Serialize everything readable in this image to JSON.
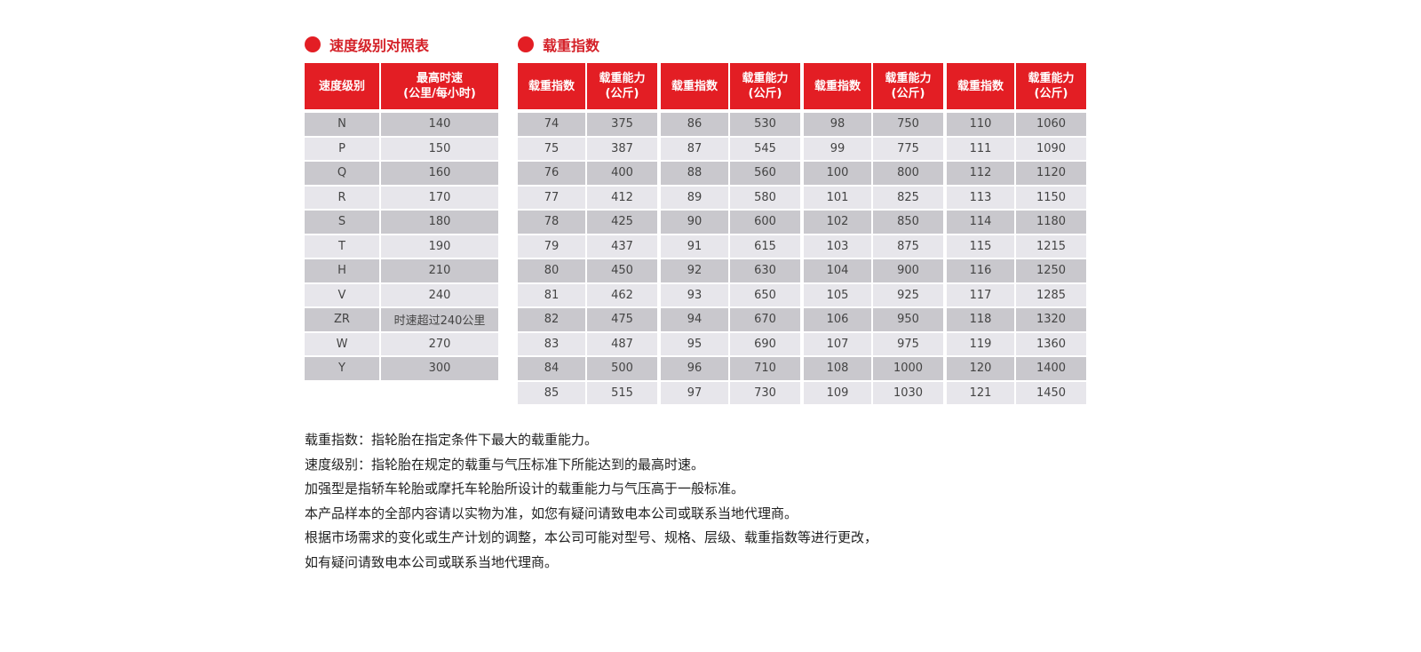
{
  "speed": {
    "title": "速度级别对照表",
    "headers": [
      "速度级别",
      "最高时速",
      "(公里/每小时)"
    ],
    "rows": [
      [
        "N",
        "140"
      ],
      [
        "P",
        "150"
      ],
      [
        "Q",
        "160"
      ],
      [
        "R",
        "170"
      ],
      [
        "S",
        "180"
      ],
      [
        "T",
        "190"
      ],
      [
        "H",
        "210"
      ],
      [
        "V",
        "240"
      ],
      [
        "ZR",
        "时速超过240公里"
      ],
      [
        "W",
        "270"
      ],
      [
        "Y",
        "300"
      ]
    ]
  },
  "load": {
    "title": "载重指数",
    "header_index": "载重指数",
    "header_cap": "载重能力",
    "header_unit": "(公斤)",
    "groups": [
      [
        [
          "74",
          "375"
        ],
        [
          "75",
          "387"
        ],
        [
          "76",
          "400"
        ],
        [
          "77",
          "412"
        ],
        [
          "78",
          "425"
        ],
        [
          "79",
          "437"
        ],
        [
          "80",
          "450"
        ],
        [
          "81",
          "462"
        ],
        [
          "82",
          "475"
        ],
        [
          "83",
          "487"
        ],
        [
          "84",
          "500"
        ],
        [
          "85",
          "515"
        ]
      ],
      [
        [
          "86",
          "530"
        ],
        [
          "87",
          "545"
        ],
        [
          "88",
          "560"
        ],
        [
          "89",
          "580"
        ],
        [
          "90",
          "600"
        ],
        [
          "91",
          "615"
        ],
        [
          "92",
          "630"
        ],
        [
          "93",
          "650"
        ],
        [
          "94",
          "670"
        ],
        [
          "95",
          "690"
        ],
        [
          "96",
          "710"
        ],
        [
          "97",
          "730"
        ]
      ],
      [
        [
          "98",
          "750"
        ],
        [
          "99",
          "775"
        ],
        [
          "100",
          "800"
        ],
        [
          "101",
          "825"
        ],
        [
          "102",
          "850"
        ],
        [
          "103",
          "875"
        ],
        [
          "104",
          "900"
        ],
        [
          "105",
          "925"
        ],
        [
          "106",
          "950"
        ],
        [
          "107",
          "975"
        ],
        [
          "108",
          "1000"
        ],
        [
          "109",
          "1030"
        ]
      ],
      [
        [
          "110",
          "1060"
        ],
        [
          "111",
          "1090"
        ],
        [
          "112",
          "1120"
        ],
        [
          "113",
          "1150"
        ],
        [
          "114",
          "1180"
        ],
        [
          "115",
          "1215"
        ],
        [
          "116",
          "1250"
        ],
        [
          "117",
          "1285"
        ],
        [
          "118",
          "1320"
        ],
        [
          "119",
          "1360"
        ],
        [
          "120",
          "1400"
        ],
        [
          "121",
          "1450"
        ]
      ]
    ]
  },
  "notes": [
    "载重指数：指轮胎在指定条件下最大的载重能力。",
    "速度级别：指轮胎在规定的载重与气压标准下所能达到的最高时速。",
    "加强型是指轿车轮胎或摩托车轮胎所设计的载重能力与气压高于一般标准。",
    "本产品样本的全部内容请以实物为准，如您有疑问请致电本公司或联系当地代理商。",
    "根据市场需求的变化或生产计划的调整，本公司可能对型号、规格、层级、载重指数等进行更改，",
    "如有疑问请致电本公司或联系当地代理商。"
  ],
  "colors": {
    "accent": "#e31e24",
    "row_dark": "#c9c8cd",
    "row_light": "#e7e6eb"
  }
}
